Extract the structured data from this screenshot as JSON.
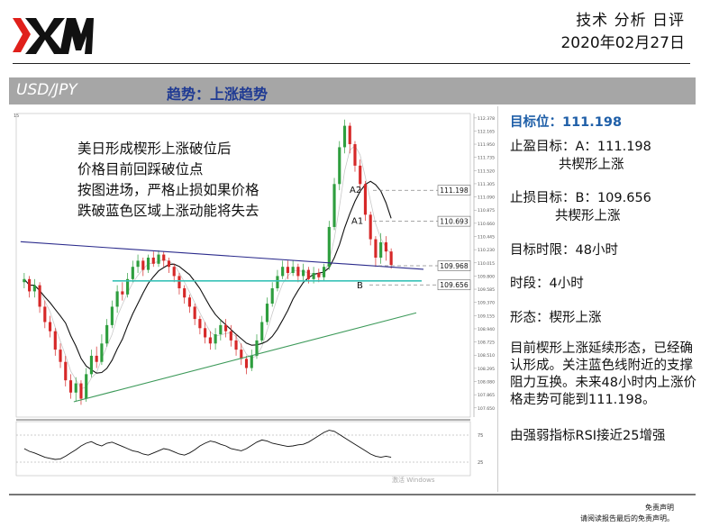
{
  "header": {
    "title": "技术 分析 日评",
    "date": "2020年02月27日"
  },
  "bar": {
    "pair": "USD/JPY",
    "trend": "趋势：上涨趋势"
  },
  "chart_data": {
    "type": "candlestick",
    "ylim": [
      107.5,
      112.45
    ],
    "y_ticks": [
      "112.378",
      "112.165",
      "111.950",
      "111.735",
      "111.520",
      "111.305",
      "111.090",
      "110.875",
      "110.660",
      "110.445",
      "110.230",
      "110.015",
      "109.800",
      "109.585",
      "109.370",
      "109.155",
      "108.940",
      "108.725",
      "108.510",
      "108.295",
      "108.080",
      "107.865",
      "107.650"
    ],
    "annotations": [
      "美日形成楔形上涨破位后",
      "价格目前回踩破位点",
      "按图进场，严格止损如果价格",
      "跌破蓝色区域上涨动能将失去"
    ],
    "price_labels": [
      "111.198",
      "110.693",
      "109.968",
      "109.656"
    ],
    "level_markers": {
      "A2": 111.198,
      "A1": 110.693,
      "B": 109.656
    },
    "support_zone": 109.72,
    "candles": [
      [
        109.7,
        109.75,
        109.85,
        109.6
      ],
      [
        109.75,
        109.55,
        109.8,
        109.45
      ],
      [
        109.55,
        109.65,
        109.75,
        109.45
      ],
      [
        109.65,
        109.3,
        109.7,
        109.2
      ],
      [
        109.3,
        109.05,
        109.4,
        108.95
      ],
      [
        109.05,
        108.9,
        109.15,
        108.8
      ],
      [
        108.9,
        108.6,
        108.95,
        108.5
      ],
      [
        108.6,
        108.4,
        108.7,
        108.3
      ],
      [
        108.4,
        108.1,
        108.5,
        108.0
      ],
      [
        108.1,
        107.9,
        108.2,
        107.8
      ],
      [
        107.9,
        108.05,
        108.15,
        107.75
      ],
      [
        108.05,
        107.8,
        108.1,
        107.7
      ],
      [
        107.8,
        108.2,
        108.3,
        107.75
      ],
      [
        108.2,
        108.5,
        108.6,
        108.15
      ],
      [
        108.5,
        108.4,
        108.65,
        108.3
      ],
      [
        108.4,
        108.7,
        108.85,
        108.35
      ],
      [
        108.7,
        109.0,
        109.1,
        108.65
      ],
      [
        109.0,
        109.3,
        109.4,
        108.95
      ],
      [
        109.3,
        109.55,
        109.65,
        109.2
      ],
      [
        109.55,
        109.5,
        109.7,
        109.4
      ],
      [
        109.5,
        109.75,
        109.85,
        109.45
      ],
      [
        109.75,
        109.95,
        110.05,
        109.7
      ],
      [
        109.95,
        110.05,
        110.15,
        109.85
      ],
      [
        110.05,
        109.9,
        110.1,
        109.8
      ],
      [
        109.9,
        110.1,
        110.15,
        109.85
      ],
      [
        110.1,
        110.0,
        110.2,
        109.95
      ],
      [
        110.0,
        110.15,
        110.22,
        109.95
      ],
      [
        110.15,
        110.05,
        110.2,
        109.95
      ],
      [
        110.05,
        109.95,
        110.1,
        109.85
      ],
      [
        109.95,
        109.8,
        110.0,
        109.7
      ],
      [
        109.8,
        109.6,
        109.85,
        109.5
      ],
      [
        109.6,
        109.45,
        109.65,
        109.35
      ],
      [
        109.45,
        109.3,
        109.5,
        109.2
      ],
      [
        109.3,
        109.1,
        109.35,
        109.0
      ],
      [
        109.1,
        108.95,
        109.15,
        108.85
      ],
      [
        108.95,
        108.8,
        109.05,
        108.7
      ],
      [
        108.8,
        108.7,
        108.9,
        108.6
      ],
      [
        108.7,
        108.85,
        108.95,
        108.6
      ],
      [
        108.85,
        109.0,
        109.1,
        108.75
      ],
      [
        109.0,
        108.9,
        109.1,
        108.8
      ],
      [
        108.9,
        108.75,
        109.0,
        108.65
      ],
      [
        108.75,
        108.6,
        108.85,
        108.5
      ],
      [
        108.6,
        108.45,
        108.7,
        108.35
      ],
      [
        108.45,
        108.3,
        108.5,
        108.2
      ],
      [
        108.3,
        108.5,
        108.6,
        108.25
      ],
      [
        108.5,
        108.75,
        108.85,
        108.45
      ],
      [
        108.75,
        109.05,
        109.15,
        108.7
      ],
      [
        109.05,
        109.35,
        109.45,
        109.0
      ],
      [
        109.35,
        109.6,
        109.7,
        109.3
      ],
      [
        109.6,
        109.8,
        109.9,
        109.55
      ],
      [
        109.8,
        109.95,
        110.05,
        109.75
      ],
      [
        109.95,
        109.85,
        110.05,
        109.75
      ],
      [
        109.85,
        109.95,
        110.05,
        109.8
      ],
      [
        109.95,
        109.8,
        110.0,
        109.7
      ],
      [
        109.8,
        109.9,
        110.0,
        109.72
      ],
      [
        109.9,
        109.75,
        109.95,
        109.68
      ],
      [
        109.75,
        109.85,
        109.95,
        109.68
      ],
      [
        109.85,
        109.78,
        109.92,
        109.7
      ],
      [
        109.78,
        109.95,
        110.0,
        109.72
      ],
      [
        109.95,
        110.6,
        110.7,
        109.9
      ],
      [
        110.6,
        111.3,
        111.4,
        110.55
      ],
      [
        111.3,
        111.9,
        112.0,
        111.2
      ],
      [
        111.9,
        112.25,
        112.35,
        111.8
      ],
      [
        112.25,
        111.95,
        112.3,
        111.8
      ],
      [
        111.95,
        111.6,
        112.0,
        111.5
      ],
      [
        111.6,
        111.3,
        111.7,
        111.2
      ],
      [
        111.3,
        110.8,
        111.35,
        110.7
      ],
      [
        110.8,
        110.4,
        110.85,
        110.3
      ],
      [
        110.4,
        110.1,
        110.45,
        109.95
      ],
      [
        110.1,
        110.35,
        110.5,
        110.0
      ],
      [
        110.35,
        110.2,
        110.45,
        110.05
      ],
      [
        110.2,
        109.98,
        110.25,
        109.92
      ]
    ],
    "rsi": [
      50,
      45,
      42,
      38,
      34,
      32,
      30,
      31,
      36,
      42,
      48,
      55,
      60,
      63,
      58,
      55,
      60,
      62,
      58,
      54,
      50,
      46,
      44,
      40,
      38,
      42,
      46,
      50,
      48,
      44,
      40,
      38,
      42,
      48,
      55,
      60,
      64,
      62,
      58,
      55,
      50,
      48,
      46,
      50,
      56,
      62,
      66,
      64,
      60,
      58,
      56,
      54,
      55,
      57,
      58,
      62,
      68,
      74,
      80,
      84,
      82,
      76,
      70,
      64,
      58,
      52,
      46,
      40,
      36,
      34,
      36,
      34
    ],
    "rsi_ticks": [
      "75",
      "25"
    ],
    "watermark": "激活 Windows"
  },
  "panel": {
    "target_price": "目标位：111.198",
    "take_profit": "止盈目标：A：111.198",
    "take_profit_note": "共楔形上涨",
    "stop_loss": "止损目标：B：109.656",
    "stop_loss_note": "共楔形上涨",
    "time_limit": "目标时限：48小时",
    "period": "时段：4小时",
    "pattern": "形态：楔形上涨",
    "analysis": "目前楔形上涨延续形态，已经确认形成。关注蓝色线附近的支撑阻力互换。未来48小时内上涨价格走势可能到111.198。",
    "rsi_note": "由强弱指标RSI接近25增强"
  },
  "footer": {
    "disclaimer_title": "免责声明",
    "disclaimer_text": "请阅读报告最后的免责声明。"
  },
  "colors": {
    "bull": "#2e9e3e",
    "bear": "#d62828",
    "trend_line": "#2b2b8c",
    "support_line": "#39c2b8",
    "rising_line": "#3d9a5a",
    "ma": "#111111"
  }
}
